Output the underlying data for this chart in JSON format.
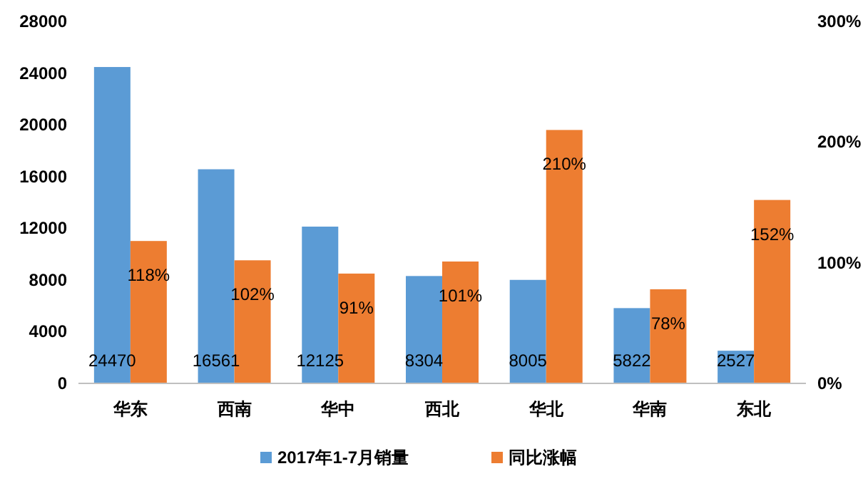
{
  "chart_data": {
    "type": "bar",
    "categories": [
      "华东",
      "西南",
      "华中",
      "西北",
      "华北",
      "华南",
      "东北"
    ],
    "series": [
      {
        "name": "2017年1-7月销量",
        "color": "#5b9bd5",
        "values": [
          24470,
          16561,
          12125,
          8304,
          8005,
          5822,
          2527
        ],
        "value_labels": [
          "24470",
          "16561",
          "12125",
          "8304",
          "8005",
          "5822",
          "2527"
        ]
      },
      {
        "name": "同比涨幅",
        "color": "#ed7d31",
        "axis": "y2",
        "values": [
          118,
          102,
          91,
          101,
          210,
          78,
          152
        ],
        "value_labels": [
          "118%",
          "102%",
          "91%",
          "101%",
          "210%",
          "78%",
          "152%"
        ]
      }
    ],
    "ylim": [
      0,
      28000
    ],
    "yticks": [
      0,
      4000,
      8000,
      12000,
      16000,
      20000,
      24000,
      28000
    ],
    "y2lim": [
      0,
      300
    ],
    "y2ticks": [
      {
        "value": 0,
        "label": "0%"
      },
      {
        "value": 100,
        "label": "100%"
      },
      {
        "value": 200,
        "label": "200%"
      },
      {
        "value": 300,
        "label": "300%"
      }
    ],
    "grid": false,
    "legend": "bottom"
  }
}
